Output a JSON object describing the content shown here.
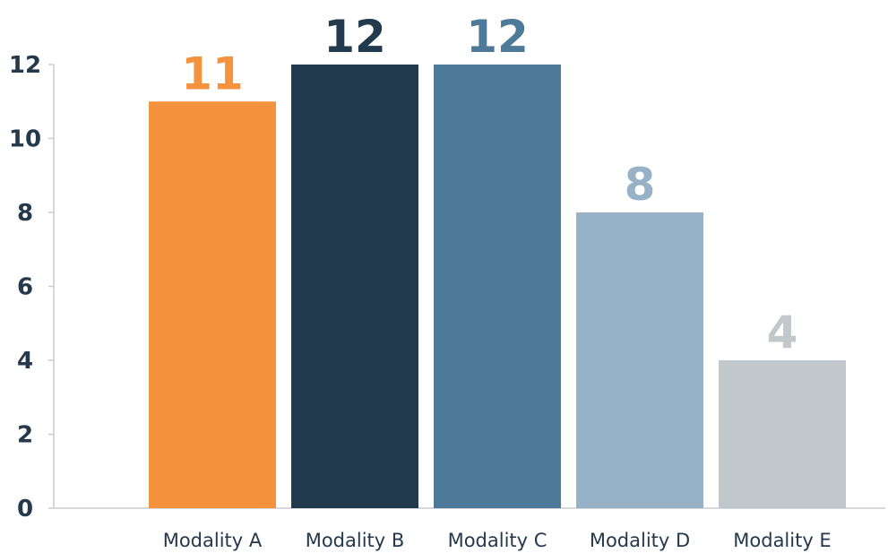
{
  "chart_data": {
    "type": "bar",
    "title": "",
    "xlabel": "",
    "ylabel": "",
    "categories": [
      "Modality A",
      "Modality B",
      "Modality C",
      "Modality D",
      "Modality E"
    ],
    "values": [
      11,
      12,
      12,
      8,
      4
    ],
    "value_labels": [
      "11",
      "12",
      "12",
      "8",
      "4"
    ],
    "colors": [
      "#f5923e",
      "#223a4e",
      "#4e7a9a",
      "#97b2c6",
      "#c2c7cb"
    ],
    "ylim": [
      0,
      12
    ],
    "yticks": [
      0,
      2,
      4,
      6,
      8,
      10,
      12
    ],
    "ytick_labels": [
      "0",
      "2",
      "4",
      "6",
      "8",
      "10",
      "12"
    ],
    "grid": false,
    "legend": "none"
  }
}
